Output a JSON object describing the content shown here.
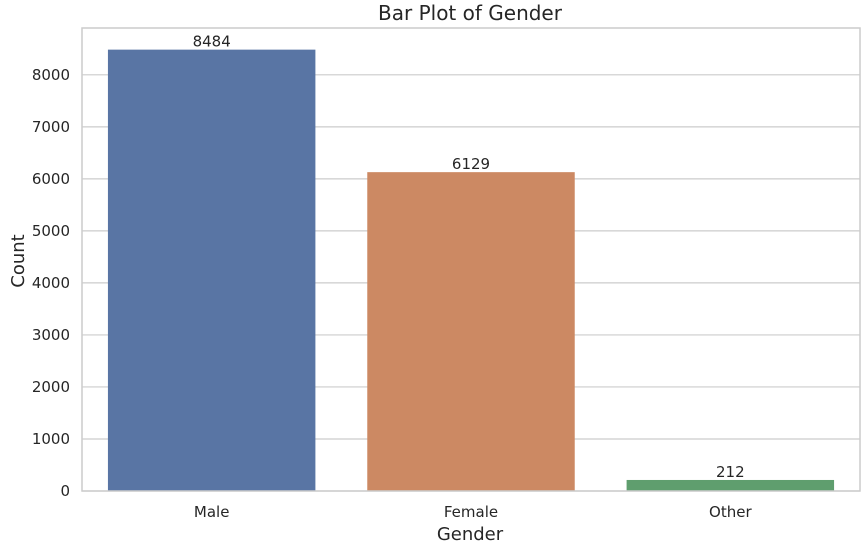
{
  "chart_data": {
    "type": "bar",
    "title": "Bar Plot of Gender",
    "xlabel": "Gender",
    "ylabel": "Count",
    "categories": [
      "Male",
      "Female",
      "Other"
    ],
    "values": [
      8484,
      6129,
      212
    ],
    "data_labels": [
      "8484",
      "6129",
      "212"
    ],
    "colors": [
      "#5975a4",
      "#cc8963",
      "#5f9e6e"
    ],
    "ylim": [
      0,
      8900
    ],
    "yticks": [
      0,
      1000,
      2000,
      3000,
      4000,
      5000,
      6000,
      7000,
      8000
    ],
    "ytick_labels": [
      "0",
      "1000",
      "2000",
      "3000",
      "4000",
      "5000",
      "6000",
      "7000",
      "8000"
    ],
    "grid": true,
    "legend": "none"
  }
}
